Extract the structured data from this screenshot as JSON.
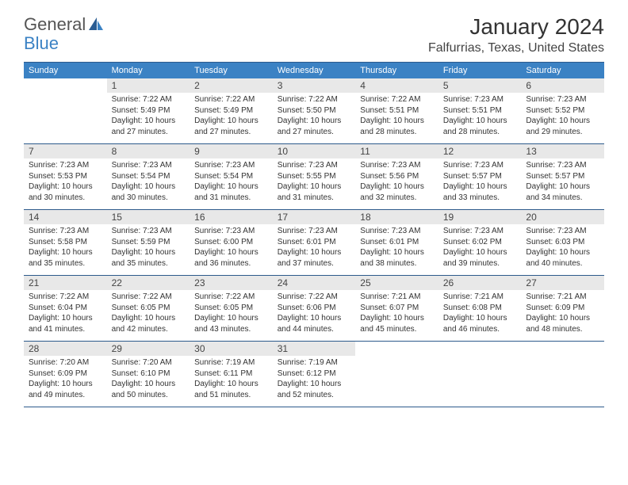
{
  "logo": {
    "general": "General",
    "blue": "Blue"
  },
  "title": "January 2024",
  "location": "Falfurrias, Texas, United States",
  "colors": {
    "header_bg": "#3b82c4",
    "header_text": "#ffffff",
    "rule": "#2d5a8c",
    "daynum_bg": "#e8e8e8",
    "text": "#333333",
    "logo_blue": "#3b82c4",
    "logo_gray": "#555555"
  },
  "daysOfWeek": [
    "Sunday",
    "Monday",
    "Tuesday",
    "Wednesday",
    "Thursday",
    "Friday",
    "Saturday"
  ],
  "weeks": [
    [
      {
        "empty": true
      },
      {
        "num": "1",
        "sunrise": "7:22 AM",
        "sunset": "5:49 PM",
        "daylight": "10 hours and 27 minutes."
      },
      {
        "num": "2",
        "sunrise": "7:22 AM",
        "sunset": "5:49 PM",
        "daylight": "10 hours and 27 minutes."
      },
      {
        "num": "3",
        "sunrise": "7:22 AM",
        "sunset": "5:50 PM",
        "daylight": "10 hours and 27 minutes."
      },
      {
        "num": "4",
        "sunrise": "7:22 AM",
        "sunset": "5:51 PM",
        "daylight": "10 hours and 28 minutes."
      },
      {
        "num": "5",
        "sunrise": "7:23 AM",
        "sunset": "5:51 PM",
        "daylight": "10 hours and 28 minutes."
      },
      {
        "num": "6",
        "sunrise": "7:23 AM",
        "sunset": "5:52 PM",
        "daylight": "10 hours and 29 minutes."
      }
    ],
    [
      {
        "num": "7",
        "sunrise": "7:23 AM",
        "sunset": "5:53 PM",
        "daylight": "10 hours and 30 minutes."
      },
      {
        "num": "8",
        "sunrise": "7:23 AM",
        "sunset": "5:54 PM",
        "daylight": "10 hours and 30 minutes."
      },
      {
        "num": "9",
        "sunrise": "7:23 AM",
        "sunset": "5:54 PM",
        "daylight": "10 hours and 31 minutes."
      },
      {
        "num": "10",
        "sunrise": "7:23 AM",
        "sunset": "5:55 PM",
        "daylight": "10 hours and 31 minutes."
      },
      {
        "num": "11",
        "sunrise": "7:23 AM",
        "sunset": "5:56 PM",
        "daylight": "10 hours and 32 minutes."
      },
      {
        "num": "12",
        "sunrise": "7:23 AM",
        "sunset": "5:57 PM",
        "daylight": "10 hours and 33 minutes."
      },
      {
        "num": "13",
        "sunrise": "7:23 AM",
        "sunset": "5:57 PM",
        "daylight": "10 hours and 34 minutes."
      }
    ],
    [
      {
        "num": "14",
        "sunrise": "7:23 AM",
        "sunset": "5:58 PM",
        "daylight": "10 hours and 35 minutes."
      },
      {
        "num": "15",
        "sunrise": "7:23 AM",
        "sunset": "5:59 PM",
        "daylight": "10 hours and 35 minutes."
      },
      {
        "num": "16",
        "sunrise": "7:23 AM",
        "sunset": "6:00 PM",
        "daylight": "10 hours and 36 minutes."
      },
      {
        "num": "17",
        "sunrise": "7:23 AM",
        "sunset": "6:01 PM",
        "daylight": "10 hours and 37 minutes."
      },
      {
        "num": "18",
        "sunrise": "7:23 AM",
        "sunset": "6:01 PM",
        "daylight": "10 hours and 38 minutes."
      },
      {
        "num": "19",
        "sunrise": "7:23 AM",
        "sunset": "6:02 PM",
        "daylight": "10 hours and 39 minutes."
      },
      {
        "num": "20",
        "sunrise": "7:23 AM",
        "sunset": "6:03 PM",
        "daylight": "10 hours and 40 minutes."
      }
    ],
    [
      {
        "num": "21",
        "sunrise": "7:22 AM",
        "sunset": "6:04 PM",
        "daylight": "10 hours and 41 minutes."
      },
      {
        "num": "22",
        "sunrise": "7:22 AM",
        "sunset": "6:05 PM",
        "daylight": "10 hours and 42 minutes."
      },
      {
        "num": "23",
        "sunrise": "7:22 AM",
        "sunset": "6:05 PM",
        "daylight": "10 hours and 43 minutes."
      },
      {
        "num": "24",
        "sunrise": "7:22 AM",
        "sunset": "6:06 PM",
        "daylight": "10 hours and 44 minutes."
      },
      {
        "num": "25",
        "sunrise": "7:21 AM",
        "sunset": "6:07 PM",
        "daylight": "10 hours and 45 minutes."
      },
      {
        "num": "26",
        "sunrise": "7:21 AM",
        "sunset": "6:08 PM",
        "daylight": "10 hours and 46 minutes."
      },
      {
        "num": "27",
        "sunrise": "7:21 AM",
        "sunset": "6:09 PM",
        "daylight": "10 hours and 48 minutes."
      }
    ],
    [
      {
        "num": "28",
        "sunrise": "7:20 AM",
        "sunset": "6:09 PM",
        "daylight": "10 hours and 49 minutes."
      },
      {
        "num": "29",
        "sunrise": "7:20 AM",
        "sunset": "6:10 PM",
        "daylight": "10 hours and 50 minutes."
      },
      {
        "num": "30",
        "sunrise": "7:19 AM",
        "sunset": "6:11 PM",
        "daylight": "10 hours and 51 minutes."
      },
      {
        "num": "31",
        "sunrise": "7:19 AM",
        "sunset": "6:12 PM",
        "daylight": "10 hours and 52 minutes."
      },
      {
        "empty": true
      },
      {
        "empty": true
      },
      {
        "empty": true
      }
    ]
  ],
  "labels": {
    "sunrise": "Sunrise: ",
    "sunset": "Sunset: ",
    "daylight": "Daylight: "
  }
}
